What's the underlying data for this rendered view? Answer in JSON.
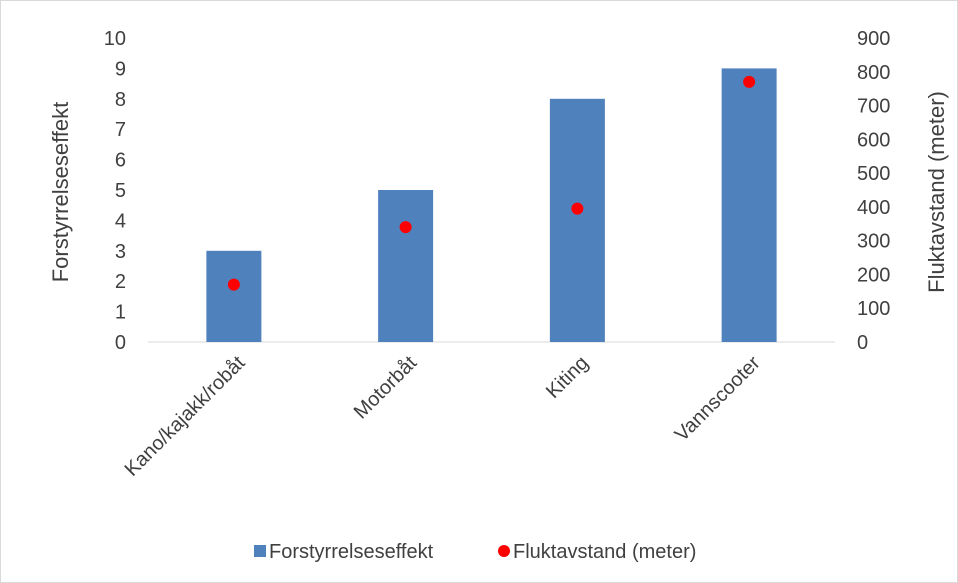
{
  "chart_data": {
    "type": "bar",
    "categories": [
      "Kano/kajakk/robåt",
      "Motorbåt",
      "Kiting",
      "Vannscooter"
    ],
    "series": [
      {
        "name": "Forstyrrelseseffekt",
        "kind": "bar",
        "axis": "left",
        "values": [
          3,
          5,
          8,
          9
        ],
        "color": "#4f81bd"
      },
      {
        "name": "Fluktavstand (meter)",
        "kind": "scatter",
        "axis": "right",
        "values": [
          170,
          340,
          395,
          770
        ],
        "color": "#ff0000"
      }
    ],
    "title": "",
    "xlabel": "",
    "ylabel": "Forstyrrelseseffekt",
    "y2label": "Fluktavstand (meter)",
    "ylim": [
      0,
      10
    ],
    "y2lim": [
      0,
      900
    ],
    "yticks": [
      "0",
      "1",
      "2",
      "3",
      "4",
      "5",
      "6",
      "7",
      "8",
      "9",
      "10"
    ],
    "y2ticks": [
      "0",
      "100",
      "200",
      "300",
      "400",
      "500",
      "600",
      "700",
      "800",
      "900"
    ],
    "grid": false,
    "legend_position": "bottom"
  }
}
